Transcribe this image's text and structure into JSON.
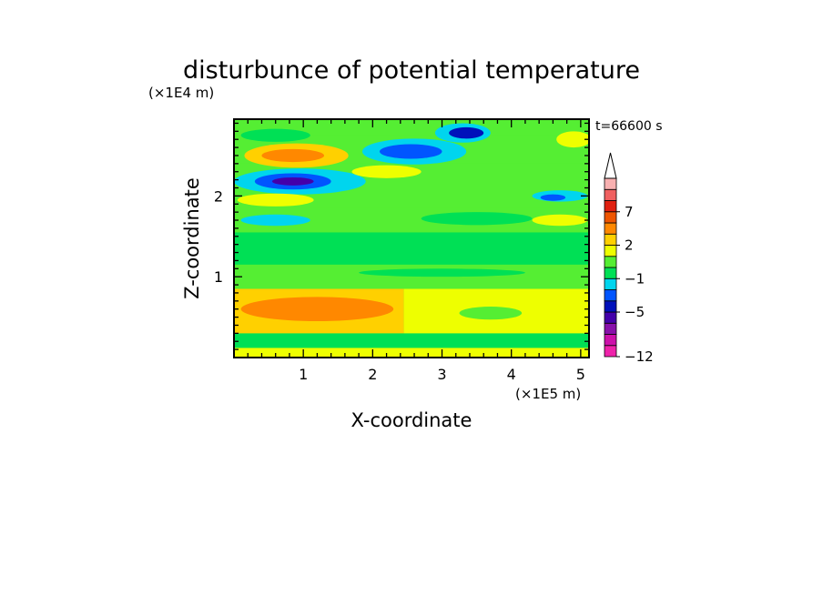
{
  "chart_data": {
    "type": "heatmap",
    "title": "disturbunce of potential temperature",
    "time_label": "t=66600 s",
    "xlabel": "X-coordinate",
    "ylabel": "Z-coordinate",
    "x_unit": "(×1E5 m)",
    "y_unit": "(×1E4 m)",
    "xlim": [
      0,
      5.12
    ],
    "ylim": [
      0,
      2.95
    ],
    "x_ticks": [
      1,
      2,
      3,
      4,
      5
    ],
    "y_ticks": [
      1,
      2
    ],
    "colorbar": {
      "levels": [
        -12,
        -10,
        -8,
        -6,
        -5,
        -4,
        -2,
        -1,
        0,
        1,
        2,
        3,
        5,
        7,
        9,
        11
      ],
      "colors": [
        "#ee22aa",
        "#cc11aa",
        "#8811aa",
        "#4400aa",
        "#0011bb",
        "#0055ff",
        "#00d5ee",
        "#00e055",
        "#55ee33",
        "#eeff00",
        "#ffd000",
        "#ff8800",
        "#ee5500",
        "#e02010",
        "#f06060",
        "#f8b0b0"
      ],
      "labels": [
        "7",
        "2",
        "−1",
        "−5",
        "−12"
      ],
      "extend": "max"
    },
    "fields": {
      "background_value": 0.5,
      "bands": [
        {
          "z": [
            0.0,
            0.12
          ],
          "x": [
            0,
            5.12
          ],
          "value": 1.2
        },
        {
          "z": [
            0.12,
            0.3
          ],
          "x": [
            0,
            5.12
          ],
          "value": -0.5
        },
        {
          "z": [
            0.3,
            0.85
          ],
          "x": [
            0,
            2.45
          ],
          "value": 2.5
        },
        {
          "z": [
            0.3,
            0.85
          ],
          "x": [
            2.45,
            5.12
          ],
          "value": 1.4
        },
        {
          "z": [
            0.85,
            1.15
          ],
          "x": [
            0,
            5.12
          ],
          "value": 0.5
        },
        {
          "z": [
            1.15,
            1.55
          ],
          "x": [
            0,
            5.12
          ],
          "value": -0.5
        },
        {
          "z": [
            1.55,
            1.85
          ],
          "x": [
            0,
            5.12
          ],
          "value": 0.8
        },
        {
          "z": [
            2.4,
            2.75
          ],
          "x": [
            0,
            5.12
          ],
          "value": 0.7
        }
      ],
      "blobs": [
        {
          "x": 0.9,
          "z": 2.5,
          "rx": 0.75,
          "rz": 0.15,
          "value": 2.4
        },
        {
          "x": 0.85,
          "z": 2.5,
          "rx": 0.45,
          "rz": 0.08,
          "value": 4.5
        },
        {
          "x": 0.95,
          "z": 2.18,
          "rx": 0.95,
          "rz": 0.16,
          "value": -1.2
        },
        {
          "x": 0.85,
          "z": 2.18,
          "rx": 0.55,
          "rz": 0.1,
          "value": -3.5
        },
        {
          "x": 0.85,
          "z": 2.18,
          "rx": 0.3,
          "rz": 0.05,
          "value": -5.5
        },
        {
          "x": 2.6,
          "z": 2.55,
          "rx": 0.75,
          "rz": 0.16,
          "value": -1.3
        },
        {
          "x": 2.55,
          "z": 2.55,
          "rx": 0.45,
          "rz": 0.09,
          "value": -3.8
        },
        {
          "x": 3.3,
          "z": 2.78,
          "rx": 0.4,
          "rz": 0.12,
          "value": -1.5
        },
        {
          "x": 3.35,
          "z": 2.78,
          "rx": 0.25,
          "rz": 0.07,
          "value": -4.2
        },
        {
          "x": 4.7,
          "z": 2.0,
          "rx": 0.4,
          "rz": 0.07,
          "value": -1.5
        },
        {
          "x": 4.6,
          "z": 1.98,
          "rx": 0.18,
          "rz": 0.04,
          "value": -3.2
        },
        {
          "x": 0.6,
          "z": 1.7,
          "rx": 0.5,
          "rz": 0.07,
          "value": -1.2
        },
        {
          "x": 0.6,
          "z": 1.95,
          "rx": 0.55,
          "rz": 0.08,
          "value": 1.5
        },
        {
          "x": 2.2,
          "z": 2.3,
          "rx": 0.5,
          "rz": 0.08,
          "value": 1.6
        },
        {
          "x": 4.7,
          "z": 1.7,
          "rx": 0.4,
          "rz": 0.07,
          "value": 1.8
        },
        {
          "x": 4.9,
          "z": 2.7,
          "rx": 0.25,
          "rz": 0.1,
          "value": 1.8
        },
        {
          "x": 0.6,
          "z": 2.75,
          "rx": 0.5,
          "rz": 0.08,
          "value": -0.3
        },
        {
          "x": 1.2,
          "z": 0.6,
          "rx": 1.1,
          "rz": 0.15,
          "value": 3.1
        },
        {
          "x": 3.0,
          "z": 1.05,
          "rx": 1.2,
          "rz": 0.05,
          "value": -0.6
        },
        {
          "x": 3.5,
          "z": 1.72,
          "rx": 0.8,
          "rz": 0.08,
          "value": -0.3
        },
        {
          "x": 3.7,
          "z": 0.55,
          "rx": 0.45,
          "rz": 0.08,
          "value": 0.6
        }
      ]
    }
  }
}
